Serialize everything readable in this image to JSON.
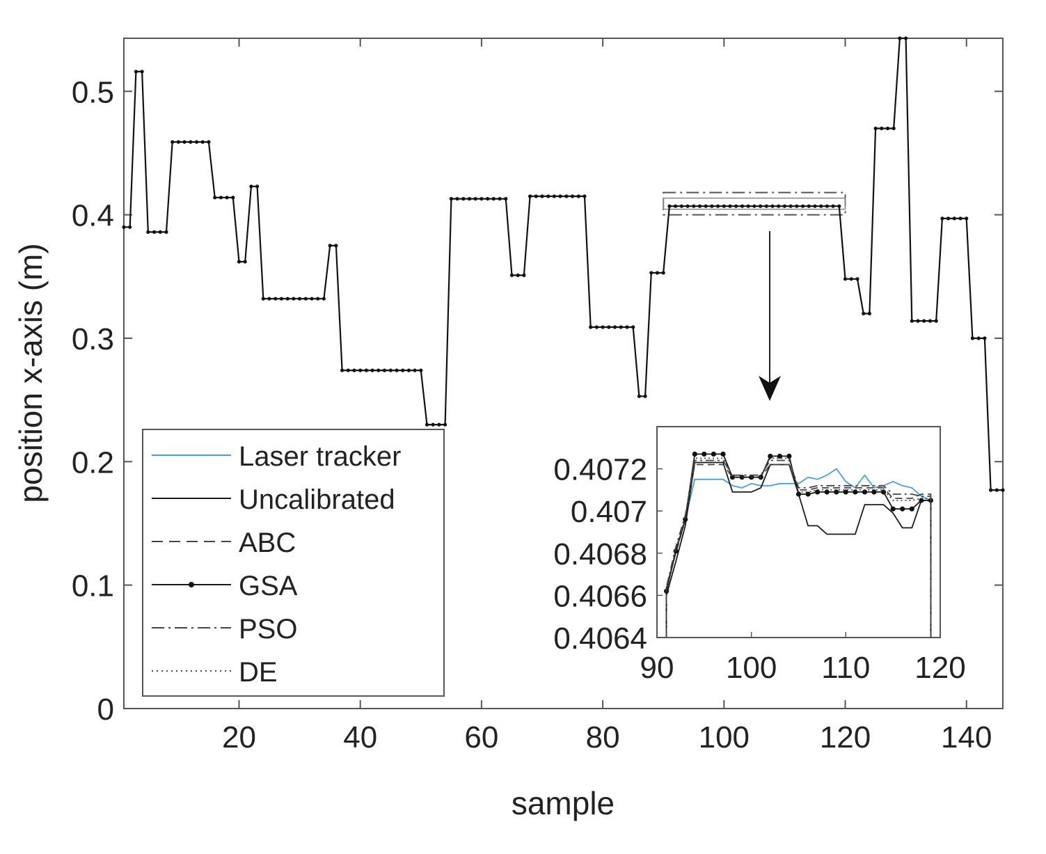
{
  "chart_data": {
    "type": "line",
    "title": "",
    "xlabel": "sample",
    "ylabel": "position x-axis (m)",
    "xlim": [
      1,
      146
    ],
    "ylim": [
      0,
      0.543
    ],
    "xticks": [
      20,
      40,
      60,
      80,
      100,
      120,
      140
    ],
    "yticks": [
      0,
      0.1,
      0.2,
      0.3,
      0.4,
      0.5
    ],
    "grid": false,
    "legend_position": "bottom-left",
    "legend": [
      "Laser tracker",
      "Uncalibrated",
      "ABC",
      "GSA",
      "PSO",
      "DE"
    ],
    "series_styles": {
      "Laser tracker": {
        "color": "#4a9fd5",
        "dash": "solid",
        "marker": "none"
      },
      "Uncalibrated": {
        "color": "#1a1a1a",
        "dash": "solid",
        "marker": "none"
      },
      "ABC": {
        "color": "#444444",
        "dash": "dashed",
        "marker": "none"
      },
      "GSA": {
        "color": "#1a1a1a",
        "dash": "solid",
        "marker": "dot"
      },
      "PSO": {
        "color": "#444444",
        "dash": "dashdot",
        "marker": "none"
      },
      "DE": {
        "color": "#444444",
        "dash": "dotted",
        "marker": "none"
      }
    },
    "segments": [
      {
        "from": 1,
        "to": 2,
        "value": 0.39
      },
      {
        "from": 3,
        "to": 4,
        "value": 0.516
      },
      {
        "from": 5,
        "to": 8,
        "value": 0.386
      },
      {
        "from": 9,
        "to": 15,
        "value": 0.459
      },
      {
        "from": 16,
        "to": 19,
        "value": 0.414
      },
      {
        "from": 20,
        "to": 21,
        "value": 0.362
      },
      {
        "from": 22,
        "to": 23,
        "value": 0.423
      },
      {
        "from": 24,
        "to": 34,
        "value": 0.332
      },
      {
        "from": 35,
        "to": 36,
        "value": 0.375
      },
      {
        "from": 37,
        "to": 50,
        "value": 0.274
      },
      {
        "from": 51,
        "to": 54,
        "value": 0.23
      },
      {
        "from": 55,
        "to": 64,
        "value": 0.413
      },
      {
        "from": 65,
        "to": 67,
        "value": 0.351
      },
      {
        "from": 68,
        "to": 77,
        "value": 0.415
      },
      {
        "from": 78,
        "to": 85,
        "value": 0.309
      },
      {
        "from": 86,
        "to": 87,
        "value": 0.253
      },
      {
        "from": 88,
        "to": 90,
        "value": 0.353
      },
      {
        "from": 91,
        "to": 119,
        "value": 0.407
      },
      {
        "from": 120,
        "to": 122,
        "value": 0.348
      },
      {
        "from": 123,
        "to": 124,
        "value": 0.32
      },
      {
        "from": 125,
        "to": 128,
        "value": 0.47
      },
      {
        "from": 129,
        "to": 130,
        "value": 0.543
      },
      {
        "from": 131,
        "to": 135,
        "value": 0.314
      },
      {
        "from": 136,
        "to": 140,
        "value": 0.397
      },
      {
        "from": 141,
        "to": 143,
        "value": 0.3
      },
      {
        "from": 144,
        "to": 146,
        "value": 0.177
      }
    ],
    "zoom_box": {
      "x": [
        90,
        120
      ],
      "y": [
        0.4,
        0.418
      ]
    },
    "inset": {
      "xlim": [
        90,
        120
      ],
      "ylim": [
        0.4064,
        0.4074
      ],
      "xticks": [
        90,
        100,
        110,
        120
      ],
      "yticks": [
        0.4064,
        0.4066,
        0.4068,
        0.407,
        0.4072
      ],
      "ytick_labels": [
        "0.4064",
        "0.4066",
        "0.4068",
        "0.407",
        "0.4072"
      ],
      "xtick_labels": [
        "90",
        "100",
        "110",
        "120"
      ],
      "x": [
        91,
        92,
        93,
        94,
        95,
        96,
        97,
        98,
        99,
        100,
        101,
        102,
        103,
        104,
        105,
        106,
        107,
        108,
        109,
        110,
        111,
        112,
        113,
        114,
        115,
        116,
        117,
        118,
        119
      ],
      "series": [
        {
          "name": "Laser tracker",
          "values": [
            0.40662,
            0.40681,
            0.40696,
            0.40715,
            0.40715,
            0.40715,
            0.40715,
            0.40712,
            0.40711,
            0.40713,
            0.40712,
            0.40712,
            0.40713,
            0.40713,
            0.40713,
            0.40716,
            0.40715,
            0.40717,
            0.4072,
            0.40714,
            0.40711,
            0.40717,
            0.40711,
            0.40712,
            0.40714,
            0.40712,
            0.40711,
            0.40707,
            0.40705
          ]
        },
        {
          "name": "Uncalibrated",
          "values": [
            0.4066,
            0.40676,
            0.40693,
            0.40723,
            0.40723,
            0.40723,
            0.40723,
            0.40709,
            0.40709,
            0.40709,
            0.40711,
            0.40722,
            0.40722,
            0.40722,
            0.40708,
            0.40693,
            0.40693,
            0.40689,
            0.40689,
            0.40689,
            0.40689,
            0.40703,
            0.40703,
            0.40703,
            0.40699,
            0.40692,
            0.40692,
            0.40705,
            0.40705
          ]
        },
        {
          "name": "ABC",
          "values": [
            0.40664,
            0.4068,
            0.40696,
            0.40722,
            0.40722,
            0.40722,
            0.40722,
            0.40716,
            0.40716,
            0.40716,
            0.40716,
            0.40722,
            0.40722,
            0.40722,
            0.4071,
            0.4071,
            0.40711,
            0.40711,
            0.40711,
            0.40711,
            0.40711,
            0.40711,
            0.40711,
            0.40711,
            0.40706,
            0.40706,
            0.40706,
            0.40708,
            0.40708
          ]
        },
        {
          "name": "GSA",
          "values": [
            0.40662,
            0.40681,
            0.40696,
            0.40727,
            0.40727,
            0.40727,
            0.40727,
            0.40716,
            0.40716,
            0.40716,
            0.40716,
            0.40726,
            0.40726,
            0.40726,
            0.40708,
            0.40708,
            0.40709,
            0.40709,
            0.40709,
            0.40709,
            0.40709,
            0.40709,
            0.40709,
            0.40709,
            0.40701,
            0.40701,
            0.40701,
            0.40705,
            0.40705
          ]
        },
        {
          "name": "PSO",
          "values": [
            0.40664,
            0.40683,
            0.40698,
            0.40724,
            0.40724,
            0.40724,
            0.40724,
            0.40717,
            0.40717,
            0.40717,
            0.40717,
            0.40724,
            0.40724,
            0.40724,
            0.40711,
            0.40711,
            0.40712,
            0.40712,
            0.40712,
            0.40712,
            0.40712,
            0.40712,
            0.40712,
            0.40712,
            0.40708,
            0.40708,
            0.40708,
            0.40707,
            0.40707
          ]
        },
        {
          "name": "DE",
          "values": [
            0.40663,
            0.40682,
            0.40697,
            0.40725,
            0.40725,
            0.40725,
            0.40725,
            0.40716,
            0.40716,
            0.40716,
            0.40716,
            0.40725,
            0.40725,
            0.40725,
            0.40709,
            0.40709,
            0.4071,
            0.4071,
            0.4071,
            0.4071,
            0.4071,
            0.4071,
            0.4071,
            0.4071,
            0.40705,
            0.40705,
            0.40705,
            0.40706,
            0.40706
          ]
        }
      ]
    }
  }
}
